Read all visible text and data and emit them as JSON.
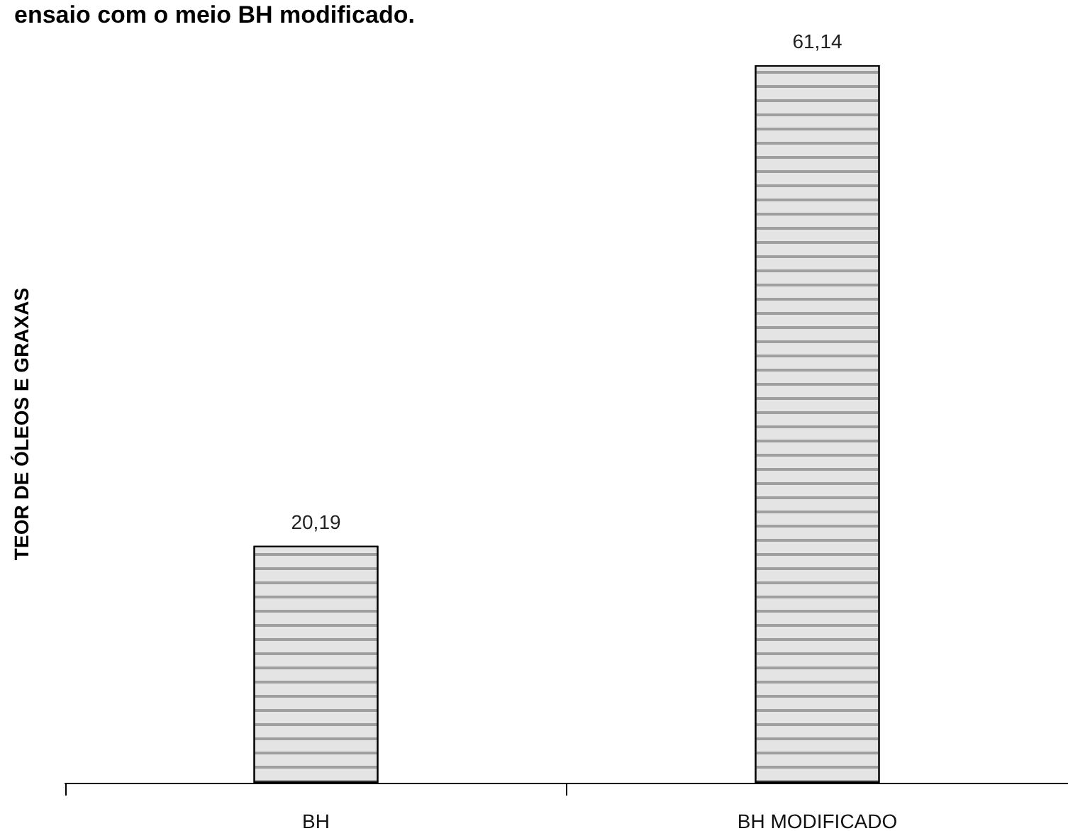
{
  "chart_data": {
    "type": "bar",
    "ylabel": "TEOR DE ÓLEOS E GRAXAS",
    "annotations": [
      "ensaio com o meio BH modificado."
    ],
    "categories": [
      "BH",
      "BH MODIFICADO"
    ],
    "values": [
      20.19,
      61.14
    ],
    "value_labels": [
      "20,19",
      "61,14"
    ],
    "color": "#e4e4e4"
  }
}
